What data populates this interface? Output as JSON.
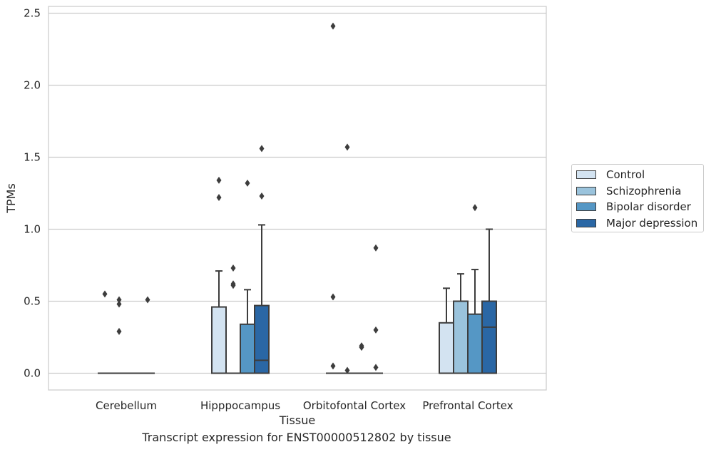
{
  "chart_data": {
    "type": "box",
    "title": "Transcript expression for ENST00000512802 by tissue",
    "xlabel": "Tissue",
    "ylabel": "TPMs",
    "ylim": [
      -0.12,
      2.54
    ],
    "yticks": [
      "0.0",
      "0.5",
      "1.0",
      "1.5",
      "2.0",
      "2.5"
    ],
    "ytick_values": [
      0,
      0.5,
      1.0,
      1.5,
      2.0,
      2.5
    ],
    "grid": "horizontal",
    "legend_position": "right",
    "categories": [
      "Cerebellum",
      "Hipppocampus",
      "Orbitofontal Cortex",
      "Prefrontal Cortex"
    ],
    "series": [
      {
        "name": "Control",
        "color": "#d3e3f1",
        "boxes": [
          {
            "q1": 0,
            "median": 0,
            "q3": 0,
            "whislo": 0,
            "whishi": 0,
            "fliers": [
              0.55
            ]
          },
          {
            "q1": 0,
            "median": 0,
            "q3": 0.46,
            "whislo": 0,
            "whishi": 0.71,
            "fliers": [
              1.22,
              1.34
            ]
          },
          {
            "q1": 0,
            "median": 0,
            "q3": 0,
            "whislo": 0,
            "whishi": 0,
            "fliers": [
              0.05,
              0.53,
              2.41
            ]
          },
          {
            "q1": 0,
            "median": 0,
            "q3": 0.35,
            "whislo": 0,
            "whishi": 0.59,
            "fliers": []
          }
        ]
      },
      {
        "name": "Schizophrenia",
        "color": "#9ac3dc",
        "boxes": [
          {
            "q1": 0,
            "median": 0,
            "q3": 0,
            "whislo": 0,
            "whishi": 0,
            "fliers": [
              0.29,
              0.48,
              0.51
            ]
          },
          {
            "q1": 0,
            "median": 0,
            "q3": 0,
            "whislo": 0,
            "whishi": 0,
            "fliers": [
              0.61,
              0.62,
              0.73
            ]
          },
          {
            "q1": 0,
            "median": 0,
            "q3": 0,
            "whislo": 0,
            "whishi": 0,
            "fliers": [
              0.02,
              1.57
            ]
          },
          {
            "q1": 0,
            "median": 0,
            "q3": 0.5,
            "whislo": 0,
            "whishi": 0.69,
            "fliers": []
          }
        ]
      },
      {
        "name": "Bipolar disorder",
        "color": "#5597c5",
        "boxes": [
          {
            "q1": 0,
            "median": 0,
            "q3": 0,
            "whislo": 0,
            "whishi": 0,
            "fliers": []
          },
          {
            "q1": 0,
            "median": 0,
            "q3": 0.34,
            "whislo": 0,
            "whishi": 0.58,
            "fliers": [
              1.32
            ]
          },
          {
            "q1": 0,
            "median": 0,
            "q3": 0,
            "whislo": 0,
            "whishi": 0,
            "fliers": [
              0.18,
              0.19
            ]
          },
          {
            "q1": 0,
            "median": 0,
            "q3": 0.41,
            "whislo": 0,
            "whishi": 0.72,
            "fliers": [
              1.15
            ]
          }
        ]
      },
      {
        "name": "Major depression",
        "color": "#2a67a5",
        "boxes": [
          {
            "q1": 0,
            "median": 0,
            "q3": 0,
            "whislo": 0,
            "whishi": 0,
            "fliers": [
              0.51
            ]
          },
          {
            "q1": 0,
            "median": 0.09,
            "q3": 0.47,
            "whislo": 0,
            "whishi": 1.03,
            "fliers": [
              1.23,
              1.56
            ]
          },
          {
            "q1": 0,
            "median": 0,
            "q3": 0,
            "whislo": 0,
            "whishi": 0,
            "fliers": [
              0.04,
              0.3,
              0.87
            ]
          },
          {
            "q1": 0,
            "median": 0.32,
            "q3": 0.5,
            "whislo": 0,
            "whishi": 1.0,
            "fliers": []
          }
        ]
      }
    ]
  }
}
